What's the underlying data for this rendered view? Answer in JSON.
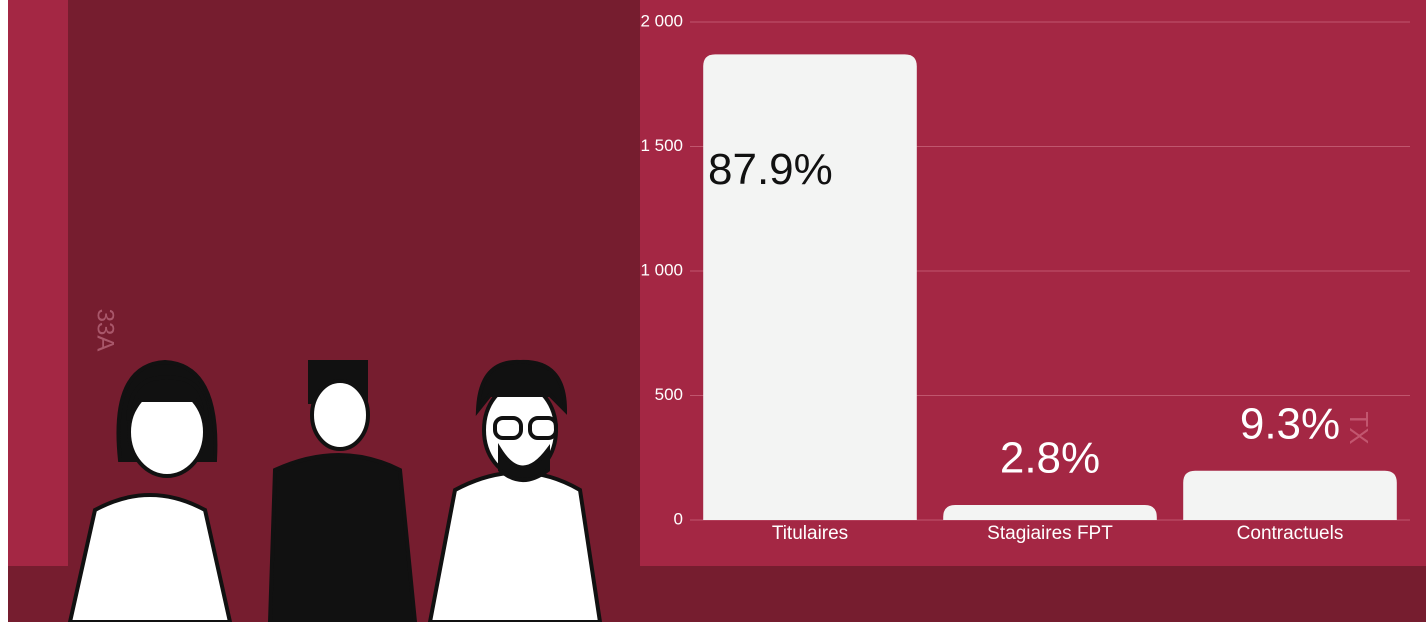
{
  "chart_data": {
    "type": "bar",
    "categories": [
      "Titulaires",
      "Stagiaires FPT",
      "Contractuels"
    ],
    "values": [
      1870,
      60,
      198
    ],
    "annotations": [
      "87.9%",
      "2.8%",
      "9.3%"
    ],
    "color": "#f3f4f3",
    "ylim": [
      0,
      2000
    ],
    "yticks": [
      0,
      500,
      {
        "value": 1000,
        "label": "1 000"
      },
      {
        "value": 1500,
        "label": "1 500"
      },
      {
        "value": 2000,
        "label": "2 000"
      }
    ],
    "grid": true
  },
  "background_marks": [
    "33A",
    "TX"
  ]
}
